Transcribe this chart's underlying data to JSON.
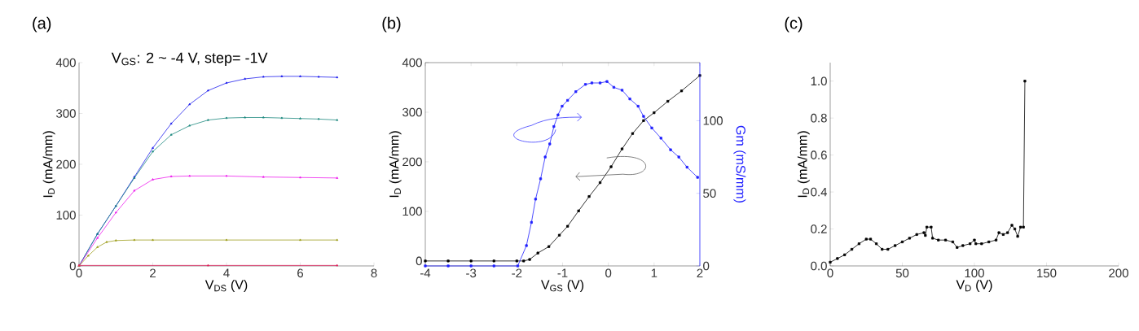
{
  "chart_data": [
    {
      "type": "line",
      "title": "(a)",
      "xlabel": "V$_{DS}$ (V)",
      "ylabel": "I$_{D}$ (mA/mm)",
      "annotations": [
        "V$_{GS}$: 2 ~ -4 V, step= -1V"
      ],
      "xlim": [
        0,
        8
      ],
      "ylim": [
        0,
        400
      ],
      "xticks": [
        0,
        2,
        4,
        6,
        8
      ],
      "yticks": [
        0,
        100,
        200,
        300,
        400
      ],
      "marker": "triangle",
      "series": [
        {
          "color": "#2020ee",
          "x": [
            0,
            0.5,
            1,
            1.5,
            2,
            2.5,
            3,
            3.5,
            4,
            4.5,
            5,
            5.5,
            6,
            6.5,
            7
          ],
          "values": [
            0,
            63,
            118,
            175,
            232,
            280,
            318,
            345,
            360,
            368,
            372,
            373,
            373,
            372,
            371
          ]
        },
        {
          "color": "#208a80",
          "x": [
            0,
            0.5,
            1,
            1.5,
            2,
            2.5,
            3,
            3.5,
            4,
            4.5,
            5,
            5.5,
            6,
            6.5,
            7
          ],
          "values": [
            0,
            63,
            118,
            173,
            225,
            258,
            276,
            287,
            291,
            292,
            292,
            291,
            290,
            289,
            287
          ]
        },
        {
          "color": "#ee20ee",
          "x": [
            0,
            0.5,
            1,
            1.5,
            2,
            2.5,
            3,
            4,
            5,
            6,
            7
          ],
          "values": [
            0,
            55,
            105,
            148,
            170,
            176,
            177,
            177,
            175,
            174,
            173
          ]
        },
        {
          "color": "#a0a020",
          "x": [
            0,
            0.25,
            0.5,
            0.75,
            1,
            1.5,
            2,
            4,
            6,
            7
          ],
          "values": [
            0,
            20,
            37,
            47,
            50,
            51,
            51,
            51,
            51,
            51
          ]
        },
        {
          "color": "#e0205a",
          "x": [
            0,
            3.5,
            7
          ],
          "values": [
            1,
            1,
            1
          ]
        }
      ]
    },
    {
      "type": "line",
      "title": "(b)",
      "xlabel": "V$_{GS}$ (V)",
      "ylabel": "I$_{D}$ (mA/mm)",
      "y2label": "Gm (mS/mm)",
      "xlim": [
        -4,
        2
      ],
      "ylim": [
        -10,
        400
      ],
      "y2lim": [
        0,
        140
      ],
      "xticks": [
        -4,
        -3,
        -2,
        -1,
        0,
        1,
        2
      ],
      "yticks": [
        0,
        100,
        200,
        300,
        400
      ],
      "y2ticks": [
        0,
        50,
        100
      ],
      "marker": "square",
      "series": [
        {
          "color": "#000000",
          "x": [
            -4,
            -3.5,
            -3,
            -2.5,
            -2,
            -1.85,
            -1.72,
            -1.54,
            -1.3,
            -1.07,
            -0.89,
            -0.65,
            -0.42,
            -0.18,
            0.06,
            0.3,
            0.53,
            0.77,
            1.0,
            1.3,
            1.6,
            2.0
          ],
          "values": [
            0,
            0,
            0,
            0,
            0,
            0,
            3,
            16,
            29,
            52,
            70,
            101,
            130,
            158,
            190,
            226,
            257,
            283,
            299,
            322,
            343,
            374
          ]
        },
        {
          "color": "#2020ff",
          "axis": "y2",
          "x": [
            -4,
            -3.5,
            -3,
            -2.5,
            -1.98,
            -1.79,
            -1.68,
            -1.59,
            -1.48,
            -1.38,
            -1.28,
            -1.19,
            -1.1,
            -1.01,
            -0.89,
            -0.71,
            -0.5,
            -0.36,
            -0.18,
            -0.03,
            0.12,
            0.3,
            0.47,
            0.65,
            0.77,
            0.95,
            1.15,
            1.36,
            1.54,
            1.72,
            1.95
          ],
          "values": [
            0,
            0,
            0,
            0,
            0,
            14,
            30,
            46,
            60,
            75,
            84,
            96,
            104,
            110,
            114,
            120,
            125,
            126,
            126,
            127,
            123,
            121,
            115,
            110,
            103,
            95,
            88,
            80,
            75,
            68,
            61
          ]
        }
      ]
    },
    {
      "type": "line",
      "title": "(c)",
      "xlabel": "V$_{D}$ (V)",
      "ylabel": "I$_{D}$ (mA/mm)",
      "xlim": [
        0,
        200
      ],
      "ylim": [
        0,
        1.1
      ],
      "xticks": [
        0,
        50,
        100,
        150,
        200
      ],
      "yticks": [
        {
          "value": 0,
          "label": "0.0"
        },
        {
          "value": 0.2,
          "label": "0.2"
        },
        {
          "value": 0.4,
          "label": "0.4"
        },
        {
          "value": 0.6,
          "label": "0.6"
        },
        {
          "value": 0.8,
          "label": "0.8"
        },
        {
          "value": 1.0,
          "label": "1.0"
        }
      ],
      "marker": "square",
      "series": [
        {
          "color": "#000000",
          "x": [
            0,
            5,
            10,
            15,
            20,
            25,
            28,
            32,
            36,
            40,
            45,
            50,
            55,
            60,
            65,
            66,
            67,
            70,
            71,
            75,
            80,
            85,
            88,
            92,
            97,
            100,
            101,
            105,
            110,
            115,
            117,
            120,
            123,
            126,
            128,
            130,
            132,
            134,
            135
          ],
          "values": [
            0.02,
            0.04,
            0.06,
            0.09,
            0.12,
            0.145,
            0.145,
            0.12,
            0.09,
            0.09,
            0.11,
            0.13,
            0.15,
            0.17,
            0.18,
            0.165,
            0.21,
            0.21,
            0.15,
            0.14,
            0.14,
            0.13,
            0.1,
            0.11,
            0.12,
            0.14,
            0.12,
            0.12,
            0.13,
            0.14,
            0.18,
            0.17,
            0.18,
            0.22,
            0.2,
            0.16,
            0.21,
            0.21,
            1.0
          ]
        }
      ]
    }
  ]
}
